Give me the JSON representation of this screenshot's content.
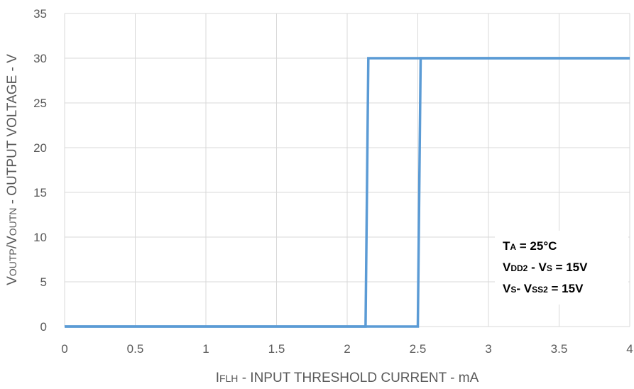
{
  "chart_data": {
    "type": "line",
    "xlabel": {
      "main": "I",
      "sub": "FLH",
      "rest": " - INPUT THRESHOLD CURRENT - mA"
    },
    "ylabel": {
      "parts": [
        {
          "t": "V",
          "sub": false
        },
        {
          "t": "OUTP",
          "sub": true
        },
        {
          "t": "/V",
          "sub": false
        },
        {
          "t": "OUTN",
          "sub": true
        },
        {
          "t": " - OUTPUT VOLTAGE - V",
          "sub": false
        }
      ]
    },
    "xlim": [
      0,
      4
    ],
    "ylim": [
      0,
      35
    ],
    "x_ticks": [
      0,
      0.5,
      1,
      1.5,
      2,
      2.5,
      3,
      3.5,
      4
    ],
    "x_tick_labels": [
      "0",
      "0.5",
      "1",
      "1.5",
      "2",
      "2.5",
      "3",
      "3.5",
      "4"
    ],
    "y_ticks": [
      0,
      5,
      10,
      15,
      20,
      25,
      30,
      35
    ],
    "y_tick_labels": [
      "0",
      "5",
      "10",
      "15",
      "20",
      "25",
      "30",
      "35"
    ],
    "grid": true,
    "line_color": "#5b9bd5",
    "series": [
      {
        "x": [
          0,
          2.13,
          2.13,
          2.15,
          2.15,
          4
        ],
        "y": [
          0,
          0,
          0,
          30,
          30,
          30
        ]
      },
      {
        "x": [
          0,
          2.5,
          2.5,
          2.52,
          2.52,
          4
        ],
        "y": [
          0,
          0,
          0,
          30,
          30,
          30
        ]
      }
    ],
    "annotation": {
      "lines": [
        [
          {
            "t": "T",
            "sub": false
          },
          {
            "t": "A",
            "sub": true
          },
          {
            "t": " = 25°C",
            "sub": false
          }
        ],
        [
          {
            "t": "V",
            "sub": false
          },
          {
            "t": "DD2",
            "sub": true
          },
          {
            "t": " - V",
            "sub": false
          },
          {
            "t": "S",
            "sub": true
          },
          {
            "t": " = 15V",
            "sub": false
          }
        ],
        [
          {
            "t": "V",
            "sub": false
          },
          {
            "t": "S",
            "sub": true
          },
          {
            "t": "- V",
            "sub": false
          },
          {
            "t": "SS2",
            "sub": true
          },
          {
            "t": " = 15V",
            "sub": false
          }
        ]
      ]
    }
  }
}
